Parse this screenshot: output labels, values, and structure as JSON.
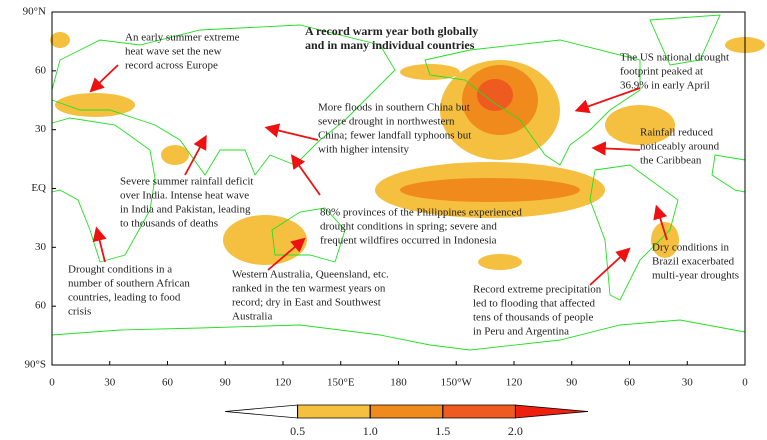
{
  "title": [
    "A record warm year both globally",
    "and in many individual countries"
  ],
  "axes": {
    "lat_labels": [
      "90°N",
      "60",
      "30",
      "EQ",
      "30",
      "60",
      "90°S"
    ],
    "lon_labels": [
      "0",
      "30",
      "60",
      "90",
      "120",
      "150°E",
      "180",
      "150°W",
      "120",
      "90",
      "60",
      "30",
      "0"
    ]
  },
  "annotations": [
    {
      "lines": [
        "An early summer extreme",
        "heat wave set the new",
        "record across Europe"
      ]
    },
    {
      "lines": [
        "The US national drought",
        "footprint peaked at",
        "36.9% in early April"
      ]
    },
    {
      "lines": [
        "More floods in southern China but",
        "severe drought in northwestern",
        "China; fewer landfall typhoons but",
        "with higher intensity"
      ]
    },
    {
      "lines": [
        "Rainfall reduced",
        "noticeably around",
        "the Caribbean"
      ]
    },
    {
      "lines": [
        "Severe summer rainfall deficit",
        "over India. Intense heat wave",
        "in India and Pakistan, leading",
        "to thousands of deaths"
      ]
    },
    {
      "lines": [
        "80% provinces of the Philippines experienced",
        "drought conditions in spring; severe and",
        "frequent wildfires occurred in Indonesia"
      ]
    },
    {
      "lines": [
        "Drought conditions in a",
        "number of southern African",
        "countries, leading to food",
        "crisis"
      ]
    },
    {
      "lines": [
        "Western Australia, Queensland, etc.",
        "ranked in the ten warmest years on",
        "record; dry in East and Southwest",
        "Australia"
      ]
    },
    {
      "lines": [
        "Record extreme precipitation",
        "led to flooding that affected",
        "tens of thousands of people",
        "in Peru and Argentina"
      ]
    },
    {
      "lines": [
        "Dry conditions in",
        "Brazil exacerbated",
        "multi-year droughts"
      ]
    }
  ],
  "colorbar": {
    "ticks": [
      0.5,
      {
        "value": 1,
        "label": "1.0"
      },
      1.5,
      {
        "value": 2,
        "label": "2.0"
      }
    ],
    "range": [
      0,
      2.5
    ]
  }
}
